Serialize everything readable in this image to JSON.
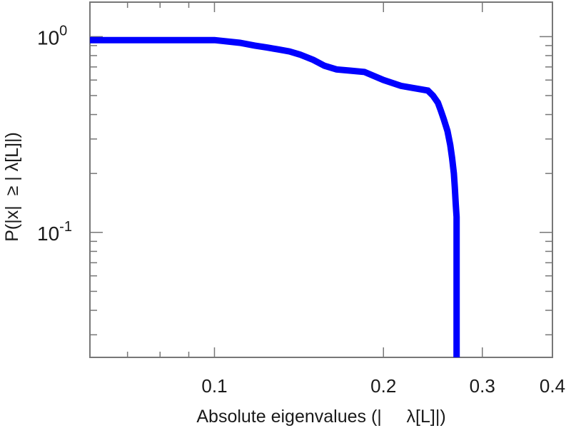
{
  "chart_data": {
    "type": "line",
    "title": "",
    "xlabel": "Absolute eigenvalues (|     λ[L]|)",
    "ylabel": "P(|x|  ≥ | λ[L]|)",
    "x_scale": "log",
    "y_scale": "log",
    "xlim": [
      0.06,
      0.4
    ],
    "ylim": [
      0.023,
      1.5
    ],
    "x_ticks": [
      {
        "value": 0.1,
        "label": "0.1"
      },
      {
        "value": 0.2,
        "label": "0.2"
      },
      {
        "value": 0.3,
        "label": "0.3"
      },
      {
        "value": 0.4,
        "label": "0.4"
      }
    ],
    "y_ticks": [
      {
        "value": 1.0,
        "base": "10",
        "exp": "0"
      },
      {
        "value": 0.1,
        "base": "10",
        "exp": "-1"
      }
    ],
    "grid": false,
    "series": [
      {
        "color": "#0000ff",
        "x": [
          0.06,
          0.1,
          0.111,
          0.118,
          0.124,
          0.13,
          0.136,
          0.142,
          0.15,
          0.157,
          0.165,
          0.175,
          0.185,
          0.2,
          0.215,
          0.24,
          0.245,
          0.25,
          0.253,
          0.256,
          0.26,
          0.263,
          0.265,
          0.267,
          0.268,
          0.269,
          0.27,
          0.27,
          0.27,
          0.27
        ],
        "y": [
          0.96,
          0.96,
          0.93,
          0.9,
          0.88,
          0.86,
          0.84,
          0.81,
          0.76,
          0.71,
          0.68,
          0.67,
          0.66,
          0.6,
          0.56,
          0.53,
          0.5,
          0.46,
          0.42,
          0.38,
          0.33,
          0.28,
          0.24,
          0.2,
          0.17,
          0.14,
          0.12,
          0.08,
          0.05,
          0.023
        ]
      }
    ]
  }
}
